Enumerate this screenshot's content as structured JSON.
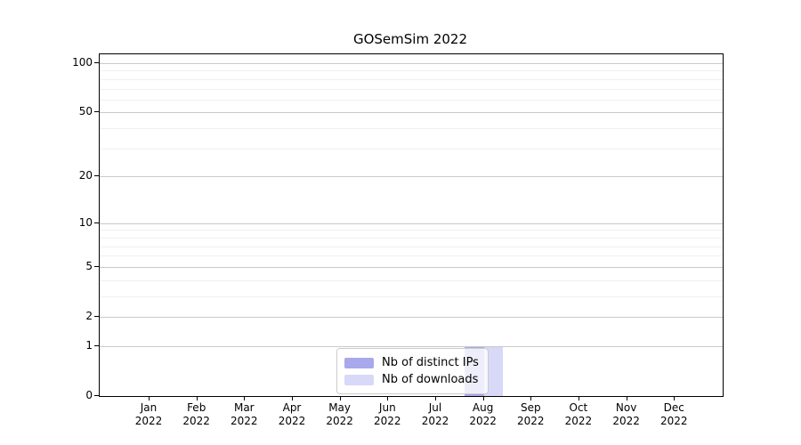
{
  "chart_data": {
    "type": "bar",
    "title": "GOSemSim 2022",
    "y_axis_scale": "log10(value+1), 0 at baseline",
    "y_ticks": [
      0,
      1,
      2,
      5,
      10,
      20,
      50,
      100
    ],
    "y_minor_gridlines": [
      3,
      4,
      6,
      7,
      8,
      9,
      30,
      40,
      60,
      70,
      80,
      90
    ],
    "ylim": [
      0,
      110
    ],
    "grid": "horizontal",
    "legend_position": "bottom-center",
    "categories": [
      "Jan 2022",
      "Feb 2022",
      "Mar 2022",
      "Apr 2022",
      "May 2022",
      "Jun 2022",
      "Jul 2022",
      "Aug 2022",
      "Sep 2022",
      "Oct 2022",
      "Nov 2022",
      "Dec 2022"
    ],
    "x_ticks": [
      {
        "line1": "Jan",
        "line2": "2022"
      },
      {
        "line1": "Feb",
        "line2": "2022"
      },
      {
        "line1": "Mar",
        "line2": "2022"
      },
      {
        "line1": "Apr",
        "line2": "2022"
      },
      {
        "line1": "May",
        "line2": "2022"
      },
      {
        "line1": "Jun",
        "line2": "2022"
      },
      {
        "line1": "Jul",
        "line2": "2022"
      },
      {
        "line1": "Aug",
        "line2": "2022"
      },
      {
        "line1": "Sep",
        "line2": "2022"
      },
      {
        "line1": "Oct",
        "line2": "2022"
      },
      {
        "line1": "Nov",
        "line2": "2022"
      },
      {
        "line1": "Dec",
        "line2": "2022"
      }
    ],
    "series": [
      {
        "name": "Nb of distinct IPs",
        "color": "#a8a8ec",
        "values": [
          0,
          0,
          0,
          0,
          0,
          0,
          0,
          1,
          0,
          0,
          0,
          0
        ]
      },
      {
        "name": "Nb of downloads",
        "color": "#d8d8f8",
        "values": [
          0,
          0,
          0,
          0,
          0,
          0,
          0,
          1,
          0,
          0,
          0,
          0
        ]
      }
    ],
    "colors": {
      "major_grid": "#c9c9c9",
      "minor_grid": "#efefef",
      "axis": "#000000",
      "legend_border": "#cccccc"
    }
  }
}
